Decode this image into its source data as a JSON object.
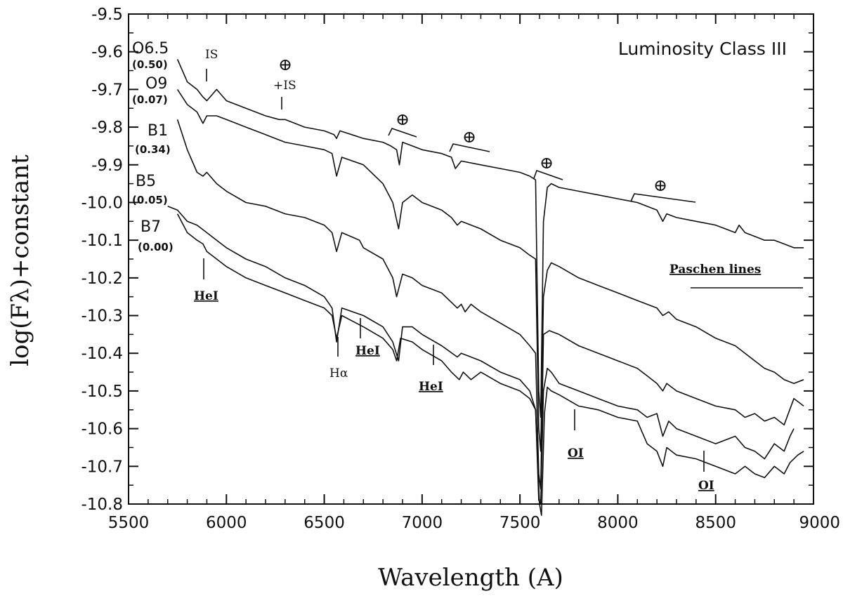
{
  "chart_data": {
    "type": "line",
    "title": "Luminosity Class III",
    "xlabel": "Wavelength (A)",
    "ylabel": "log(Fλ)+constant",
    "xlim": [
      5500,
      9000
    ],
    "ylim": [
      -10.8,
      -9.5
    ],
    "xticks": [
      5500,
      6000,
      6500,
      7000,
      7500,
      8000,
      8500,
      9000
    ],
    "xtick_labels": [
      "5500",
      "6000",
      "6500",
      "7000",
      "7500",
      "8000",
      "8500",
      "9000"
    ],
    "yticks": [
      -9.5,
      -9.6,
      -9.7,
      -9.8,
      -9.9,
      -10.0,
      -10.1,
      -10.2,
      -10.3,
      -10.4,
      -10.5,
      -10.6,
      -10.7,
      -10.8
    ],
    "ytick_labels": [
      "-9.5",
      "-9.6",
      "-9.7",
      "-9.8",
      "-9.9",
      "-10.0",
      "-10.1",
      "-10.2",
      "-10.3",
      "-10.4",
      "-10.5",
      "-10.6",
      "-10.7",
      "-10.8"
    ],
    "grid": false,
    "series": [
      {
        "name": "O6.5",
        "sub": "(0.50)",
        "x": [
          5750,
          5800,
          5850,
          5880,
          5900,
          5950,
          6000,
          6100,
          6200,
          6270,
          6300,
          6400,
          6500,
          6550,
          6563,
          6580,
          6700,
          6800,
          6840,
          6870,
          6884,
          6900,
          6950,
          7000,
          7100,
          7150,
          7170,
          7200,
          7300,
          7400,
          7500,
          7550,
          7580,
          7596,
          7606,
          7620,
          7640,
          7660,
          7700,
          7800,
          7900,
          8000,
          8100,
          8200,
          8230,
          8250,
          8300,
          8400,
          8500,
          8550,
          8600,
          8620,
          8650,
          8700,
          8750,
          8800,
          8850,
          8900,
          8950
        ],
        "y": [
          -9.62,
          -9.68,
          -9.7,
          -9.72,
          -9.73,
          -9.7,
          -9.73,
          -9.75,
          -9.77,
          -9.78,
          -9.78,
          -9.8,
          -9.81,
          -9.82,
          -9.83,
          -9.81,
          -9.83,
          -9.84,
          -9.85,
          -9.86,
          -9.9,
          -9.84,
          -9.85,
          -9.86,
          -9.87,
          -9.88,
          -9.91,
          -9.89,
          -9.9,
          -9.91,
          -9.92,
          -9.93,
          -9.94,
          -10.5,
          -10.57,
          -10.05,
          -9.96,
          -9.95,
          -9.96,
          -9.97,
          -9.98,
          -9.99,
          -10.0,
          -10.02,
          -10.05,
          -10.03,
          -10.04,
          -10.05,
          -10.06,
          -10.07,
          -10.08,
          -10.06,
          -10.08,
          -10.09,
          -10.1,
          -10.1,
          -10.11,
          -10.12,
          -10.12
        ]
      },
      {
        "name": "O9",
        "sub": "(0.07)",
        "x": [
          5750,
          5800,
          5850,
          5880,
          5900,
          5950,
          6000,
          6100,
          6200,
          6300,
          6400,
          6500,
          6540,
          6563,
          6590,
          6700,
          6800,
          6850,
          6880,
          6900,
          6950,
          7000,
          7100,
          7150,
          7180,
          7200,
          7300,
          7400,
          7500,
          7550,
          7580,
          7596,
          7606,
          7620,
          7640,
          7660,
          7700,
          7800,
          7900,
          8000,
          8100,
          8200,
          8230,
          8260,
          8300,
          8400,
          8500,
          8600,
          8650,
          8700,
          8750,
          8800,
          8850,
          8900,
          8950
        ],
        "y": [
          -9.7,
          -9.74,
          -9.76,
          -9.79,
          -9.77,
          -9.77,
          -9.78,
          -9.8,
          -9.82,
          -9.84,
          -9.85,
          -9.86,
          -9.87,
          -9.93,
          -9.88,
          -9.9,
          -9.95,
          -10.0,
          -10.07,
          -10.0,
          -9.98,
          -10.0,
          -10.02,
          -10.04,
          -10.06,
          -10.05,
          -10.07,
          -10.1,
          -10.12,
          -10.14,
          -10.15,
          -10.6,
          -10.66,
          -10.25,
          -10.18,
          -10.16,
          -10.17,
          -10.2,
          -10.22,
          -10.24,
          -10.26,
          -10.28,
          -10.3,
          -10.29,
          -10.31,
          -10.33,
          -10.36,
          -10.38,
          -10.4,
          -10.42,
          -10.44,
          -10.45,
          -10.47,
          -10.48,
          -10.47
        ]
      },
      {
        "name": "B1",
        "sub": "(0.34)",
        "x": [
          5750,
          5800,
          5850,
          5880,
          5900,
          5950,
          6000,
          6100,
          6200,
          6300,
          6400,
          6500,
          6540,
          6563,
          6590,
          6680,
          6700,
          6800,
          6850,
          6870,
          6900,
          6950,
          7000,
          7100,
          7180,
          7200,
          7220,
          7250,
          7300,
          7400,
          7500,
          7550,
          7580,
          7596,
          7606,
          7620,
          7650,
          7700,
          7800,
          7900,
          8000,
          8100,
          8150,
          8200,
          8230,
          8250,
          8300,
          8400,
          8500,
          8600,
          8650,
          8700,
          8750,
          8800,
          8850,
          8900,
          8950
        ],
        "y": [
          -9.78,
          -9.86,
          -9.92,
          -9.93,
          -9.92,
          -9.95,
          -9.97,
          -10.0,
          -10.01,
          -10.03,
          -10.04,
          -10.06,
          -10.08,
          -10.13,
          -10.08,
          -10.1,
          -10.12,
          -10.15,
          -10.2,
          -10.25,
          -10.19,
          -10.2,
          -10.22,
          -10.24,
          -10.28,
          -10.27,
          -10.29,
          -10.27,
          -10.29,
          -10.32,
          -10.35,
          -10.38,
          -10.4,
          -10.72,
          -10.76,
          -10.35,
          -10.34,
          -10.35,
          -10.38,
          -10.4,
          -10.42,
          -10.44,
          -10.46,
          -10.48,
          -10.5,
          -10.48,
          -10.5,
          -10.52,
          -10.54,
          -10.55,
          -10.57,
          -10.56,
          -10.58,
          -10.57,
          -10.59,
          -10.52,
          -10.54
        ]
      },
      {
        "name": "B5",
        "sub": "(0.05)",
        "x": [
          5700,
          5750,
          5800,
          5850,
          5900,
          5950,
          6000,
          6100,
          6200,
          6300,
          6400,
          6500,
          6540,
          6563,
          6590,
          6700,
          6800,
          6850,
          6880,
          6900,
          6950,
          7000,
          7100,
          7180,
          7200,
          7300,
          7400,
          7500,
          7550,
          7580,
          7596,
          7606,
          7620,
          7640,
          7660,
          7700,
          7800,
          7900,
          8000,
          8100,
          8150,
          8200,
          8230,
          8260,
          8300,
          8400,
          8500,
          8600,
          8650,
          8700,
          8750,
          8800,
          8850,
          8880,
          8900
        ],
        "y": [
          -10.01,
          -10.02,
          -10.05,
          -10.06,
          -10.08,
          -10.1,
          -10.12,
          -10.15,
          -10.17,
          -10.2,
          -10.22,
          -10.25,
          -10.28,
          -10.37,
          -10.28,
          -10.3,
          -10.33,
          -10.37,
          -10.42,
          -10.33,
          -10.33,
          -10.35,
          -10.38,
          -10.41,
          -10.4,
          -10.42,
          -10.45,
          -10.47,
          -10.5,
          -10.55,
          -10.79,
          -10.8,
          -10.5,
          -10.44,
          -10.45,
          -10.48,
          -10.5,
          -10.52,
          -10.54,
          -10.55,
          -10.57,
          -10.56,
          -10.62,
          -10.58,
          -10.6,
          -10.62,
          -10.64,
          -10.62,
          -10.65,
          -10.66,
          -10.68,
          -10.64,
          -10.66,
          -10.62,
          -10.6
        ]
      },
      {
        "name": "B7",
        "sub": "(0.00)",
        "x": [
          5750,
          5800,
          5850,
          5880,
          5900,
          5950,
          6000,
          6100,
          6200,
          6300,
          6400,
          6500,
          6540,
          6563,
          6590,
          6700,
          6800,
          6850,
          6870,
          6890,
          6950,
          7000,
          7100,
          7150,
          7190,
          7210,
          7250,
          7300,
          7400,
          7500,
          7550,
          7580,
          7600,
          7610,
          7625,
          7640,
          7660,
          7700,
          7800,
          7900,
          8000,
          8100,
          8150,
          8200,
          8230,
          8250,
          8300,
          8400,
          8500,
          8600,
          8650,
          8700,
          8750,
          8800,
          8850,
          8880,
          8920,
          8950
        ],
        "y": [
          -10.03,
          -10.08,
          -10.1,
          -10.11,
          -10.13,
          -10.15,
          -10.17,
          -10.2,
          -10.22,
          -10.24,
          -10.26,
          -10.28,
          -10.3,
          -10.36,
          -10.3,
          -10.33,
          -10.36,
          -10.39,
          -10.42,
          -10.36,
          -10.37,
          -10.39,
          -10.42,
          -10.45,
          -10.47,
          -10.45,
          -10.47,
          -10.45,
          -10.48,
          -10.5,
          -10.52,
          -10.55,
          -10.8,
          -10.83,
          -10.56,
          -10.49,
          -10.5,
          -10.51,
          -10.54,
          -10.55,
          -10.57,
          -10.58,
          -10.64,
          -10.66,
          -10.7,
          -10.65,
          -10.67,
          -10.68,
          -10.7,
          -10.72,
          -10.7,
          -10.72,
          -10.73,
          -10.7,
          -10.72,
          -10.69,
          -10.67,
          -10.66
        ]
      }
    ],
    "annotations": {
      "is": "IS",
      "telluric_symbol": "⊕",
      "telluric_is": "+IS",
      "hei": "HeI",
      "halpha": "Hα",
      "oi": "OI",
      "paschen": "Paschen lines"
    }
  }
}
